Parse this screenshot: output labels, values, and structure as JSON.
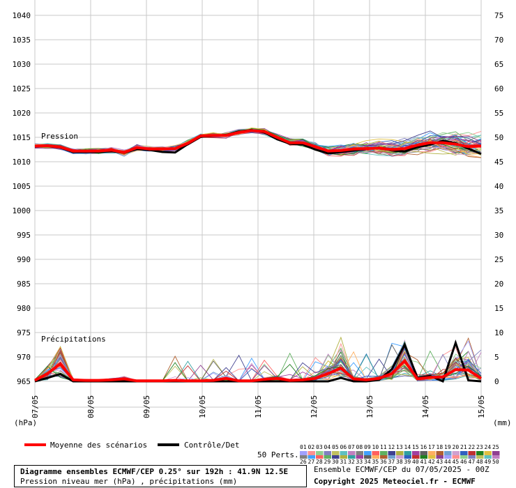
{
  "chart_data": {
    "type": "line",
    "labels": {
      "pression": "Pression",
      "precipitations": "Précipitations",
      "left_unit": "(hPa)",
      "right_unit": "(mm)"
    },
    "left_axis": {
      "min": 965,
      "max": 1040,
      "ticks": [
        1040,
        1035,
        1030,
        1025,
        1020,
        1015,
        1010,
        1005,
        1000,
        995,
        990,
        985,
        980,
        975,
        970,
        965
      ]
    },
    "right_axis": {
      "ticks": [
        75,
        70,
        65,
        60,
        55,
        50,
        45,
        40,
        35,
        30,
        25,
        20,
        15,
        10,
        5,
        0
      ]
    },
    "x_ticks": [
      "07/05",
      "08/05",
      "09/05",
      "10/05",
      "11/05",
      "12/05",
      "13/05",
      "14/05",
      "15/05"
    ],
    "pressure": {
      "step_hours": 6,
      "mean": [
        1013.2,
        1013.3,
        1013.0,
        1012.2,
        1012.2,
        1012.2,
        1012.4,
        1011.9,
        1012.9,
        1012.6,
        1012.6,
        1012.7,
        1013.8,
        1015.3,
        1015.4,
        1015.4,
        1016.0,
        1016.4,
        1016.2,
        1015.0,
        1013.9,
        1013.9,
        1013.1,
        1012.2,
        1012.3,
        1012.6,
        1012.7,
        1012.8,
        1012.5,
        1012.7,
        1013.4,
        1013.9,
        1013.9,
        1013.6,
        1013.1,
        1013.2
      ],
      "control": [
        1013.1,
        1013.2,
        1012.9,
        1012.0,
        1012.0,
        1012.0,
        1012.2,
        1011.8,
        1012.6,
        1012.4,
        1012.0,
        1011.9,
        1013.6,
        1015.1,
        1015.3,
        1015.5,
        1016.2,
        1016.5,
        1016.0,
        1014.6,
        1013.7,
        1013.5,
        1012.5,
        1011.7,
        1012.0,
        1012.3,
        1012.6,
        1012.9,
        1012.3,
        1012.1,
        1013.0,
        1013.5,
        1014.3,
        1013.8,
        1012.7,
        1011.6
      ]
    },
    "precipitation": {
      "step_hours": 6,
      "mean": [
        0.2,
        1.6,
        3.6,
        0.3,
        0.2,
        0.2,
        0.3,
        0.5,
        0.1,
        0.1,
        0.1,
        0.2,
        0.1,
        0.1,
        0.2,
        0.6,
        0.1,
        0.1,
        0.4,
        0.6,
        0.2,
        0.3,
        0.6,
        1.6,
        2.7,
        0.5,
        0.3,
        0.6,
        1.6,
        4.2,
        0.5,
        0.8,
        0.9,
        2.4,
        2.3,
        0.6
      ],
      "control": [
        0.0,
        0.7,
        1.5,
        0.0,
        0.0,
        0.0,
        0.0,
        0.0,
        0.0,
        0.0,
        0.0,
        0.0,
        0.0,
        0.0,
        0.0,
        0.0,
        0.0,
        0.0,
        0.0,
        0.0,
        0.0,
        0.0,
        0.0,
        0.0,
        0.7,
        0.0,
        0.0,
        0.3,
        2.5,
        7.5,
        0.7,
        1.1,
        0.0,
        7.9,
        0.2,
        0.0
      ]
    },
    "members_count": 50,
    "legend": [
      {
        "label": "Moyenne des scénarios",
        "color": "#ff0000"
      },
      {
        "label": "Contrôle/Det",
        "color": "#000000"
      }
    ],
    "perturbations_label": "50 Perts.",
    "perturbations_row1": [
      "01",
      "02",
      "03",
      "04",
      "05",
      "06",
      "07",
      "08",
      "09",
      "10",
      "11",
      "12",
      "13",
      "14",
      "15",
      "16",
      "17",
      "18",
      "19",
      "20",
      "21",
      "22",
      "23",
      "24",
      "25"
    ],
    "perturbations_row2": [
      "26",
      "27",
      "28",
      "29",
      "30",
      "31",
      "32",
      "33",
      "34",
      "35",
      "36",
      "37",
      "38",
      "39",
      "40",
      "41",
      "42",
      "43",
      "44",
      "45",
      "46",
      "47",
      "48",
      "49",
      "50"
    ]
  },
  "footer": {
    "title": "Diagramme ensembles ECMWF/CEP 0.25° sur 192h : 41.9N 12.5E",
    "subtitle": "Pression niveau mer (hPa) , précipitations (mm)",
    "run": "Ensemble ECMWF/CEP du 07/05/2025 - 00Z",
    "copyright": "Copyright 2025 Meteociel.fr - ECMWF"
  }
}
